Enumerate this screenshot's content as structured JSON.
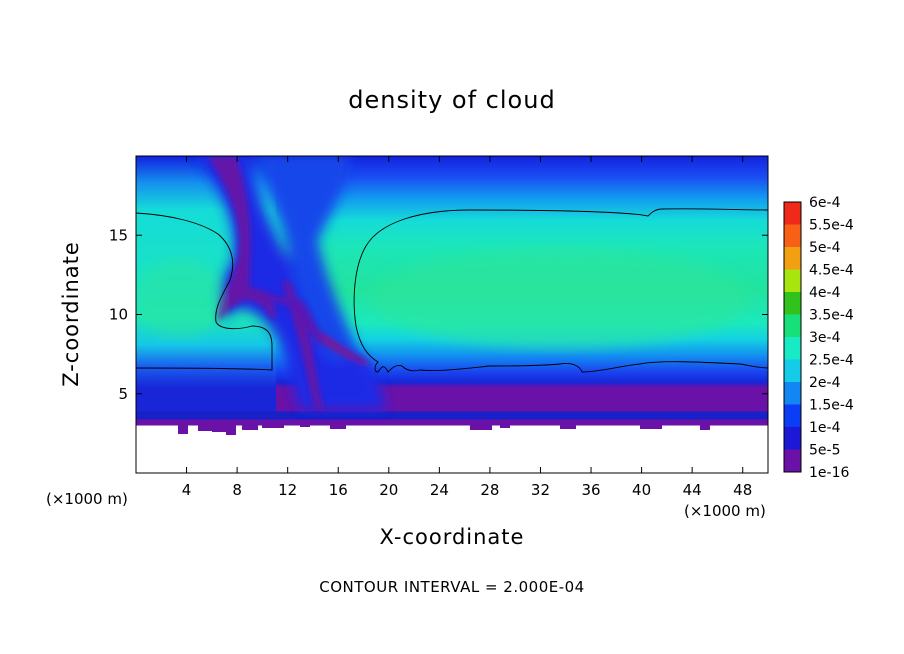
{
  "chart_data": {
    "type": "heatmap",
    "title": "density of cloud",
    "xlabel": "X-coordinate",
    "ylabel": "Z-coordinate",
    "x_unit_label": "(×1000 m)",
    "y_unit_label": "(×1000 m)",
    "xlim": [
      0,
      50
    ],
    "ylim": [
      0,
      20
    ],
    "x_ticks": [
      4,
      8,
      12,
      16,
      20,
      24,
      28,
      32,
      36,
      40,
      44,
      48
    ],
    "y_ticks": [
      5,
      10,
      15
    ],
    "note": "CONTOUR INTERVAL = 2.000E-04",
    "colorbar": {
      "labels": [
        "1e-16",
        "5e-5",
        "1e-4",
        "1.5e-4",
        "2e-4",
        "2.5e-4",
        "3e-4",
        "3.5e-4",
        "4e-4",
        "4.5e-4",
        "5e-4",
        "5.5e-4",
        "6e-4"
      ],
      "colors": [
        "#6a12a8",
        "#1c18d6",
        "#0a3df4",
        "#1286f2",
        "#14cbe8",
        "#18eac6",
        "#17e07a",
        "#32c21c",
        "#a8e40e",
        "#f0a010",
        "#f86018",
        "#f02a1a",
        "#f08a96"
      ]
    },
    "contour_levels": [
      0.0002
    ],
    "field_description": {
      "cloud_base_km": 3.0,
      "cloud_top_km": 20,
      "anvil_core_value": 0.00024,
      "core_height_km": 11
    }
  }
}
